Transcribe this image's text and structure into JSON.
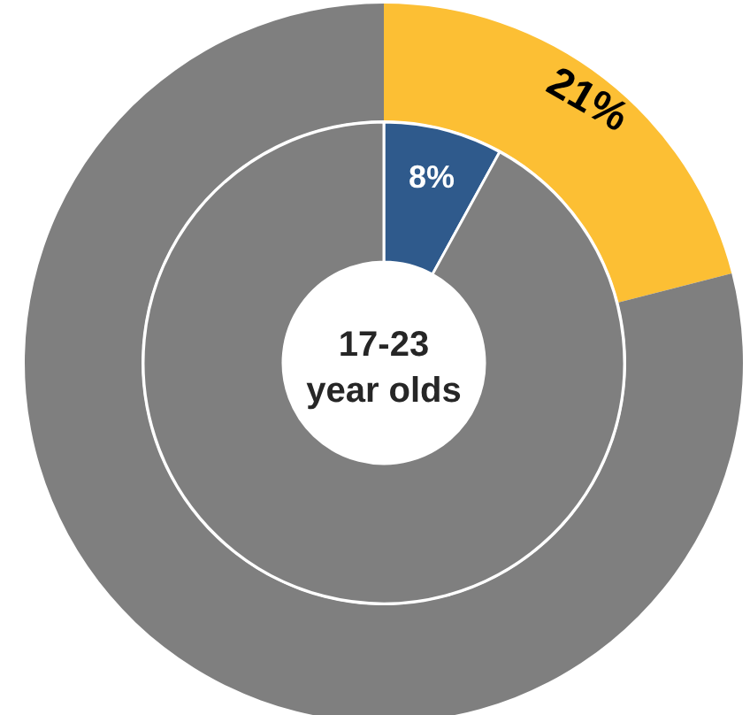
{
  "chart_data": [
    {
      "type": "donut",
      "categories": [
        null,
        null
      ],
      "values": [
        21,
        79
      ],
      "colors": [
        "#fcbf34",
        "#7f7f7f"
      ],
      "value_labels": [
        "21%",
        null
      ]
    },
    {
      "type": "donut",
      "title": "17-23 year olds",
      "categories": [
        null,
        null
      ],
      "values": [
        8,
        92
      ],
      "colors": [
        "#2f5a8c",
        "#7f7f7f"
      ],
      "value_labels": [
        "8%",
        null
      ]
    }
  ]
}
